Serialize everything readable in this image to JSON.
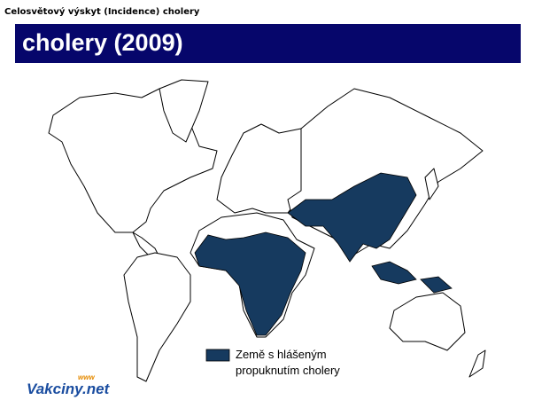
{
  "header": {
    "caption": "Celosvětový výskyt (Incidence) cholery",
    "title": "cholery (2009)"
  },
  "legend": {
    "lines": [
      "Země s hlášeným",
      "propuknutím cholery"
    ]
  },
  "logo": {
    "prefix": "www",
    "text": "Vakciny.net"
  }
}
